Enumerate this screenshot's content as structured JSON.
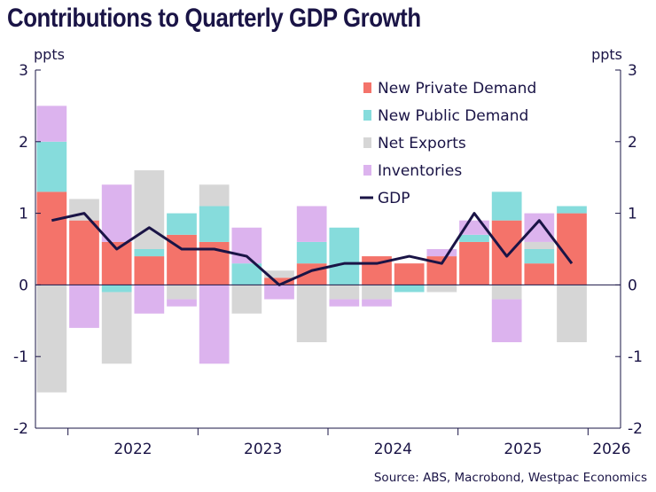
{
  "chart_data": {
    "type": "bar",
    "title": "Contributions to Quarterly GDP Growth",
    "ylabel_left": "ppts",
    "ylabel_right": "ppts",
    "ylim": [
      -2,
      3
    ],
    "yticks": [
      -2,
      -1,
      0,
      1,
      2,
      3
    ],
    "xticks": [
      "2022",
      "2023",
      "2024",
      "2025",
      "2026"
    ],
    "legend_position": "top-right",
    "grid": false,
    "x": [
      "2021 Q4",
      "2022 Q1",
      "2022 Q2",
      "2022 Q3",
      "2022 Q4",
      "2023 Q1",
      "2023 Q2",
      "2023 Q3",
      "2023 Q4",
      "2024 Q1",
      "2024 Q2",
      "2024 Q3",
      "2024 Q4",
      "2025 Q1",
      "2025 Q2",
      "2025 Q3",
      "2025 Q4",
      "2026 Q1"
    ],
    "series": [
      {
        "name": "New Private Demand",
        "type": "bar",
        "color": "#f4736a",
        "values": [
          1.3,
          0.9,
          0.6,
          0.4,
          0.7,
          0.6,
          0.0,
          0.1,
          0.3,
          0.0,
          0.4,
          0.3,
          0.4,
          0.6,
          0.9,
          0.3,
          1.0,
          null
        ]
      },
      {
        "name": "New Public Demand",
        "type": "bar",
        "color": "#86dcdc",
        "values": [
          0.7,
          0.0,
          -0.1,
          0.1,
          0.3,
          0.5,
          0.3,
          0.0,
          0.3,
          0.8,
          0.0,
          -0.1,
          0.0,
          0.1,
          0.4,
          0.2,
          0.1,
          null
        ]
      },
      {
        "name": "Net Exports",
        "type": "bar",
        "color": "#d6d6d6",
        "values": [
          -1.5,
          0.3,
          -1.0,
          1.1,
          -0.2,
          0.3,
          -0.4,
          0.1,
          -0.8,
          -0.2,
          -0.2,
          0.0,
          -0.1,
          0.0,
          -0.2,
          0.1,
          -0.8,
          null
        ]
      },
      {
        "name": "Inventories",
        "type": "bar",
        "color": "#dcb3ee",
        "values": [
          0.5,
          -0.6,
          0.8,
          -0.4,
          -0.1,
          -1.1,
          0.5,
          -0.2,
          0.5,
          -0.1,
          -0.1,
          0.0,
          0.1,
          0.2,
          -0.6,
          0.4,
          0.0,
          null
        ]
      },
      {
        "name": "GDP",
        "type": "line",
        "color": "#1a1446",
        "values": [
          0.9,
          1.0,
          0.5,
          0.8,
          0.5,
          0.5,
          0.4,
          0.0,
          0.2,
          0.3,
          0.3,
          0.4,
          0.3,
          1.0,
          0.4,
          0.9,
          0.3,
          null
        ]
      }
    ]
  },
  "source": "Source: ABS, Macrobond, Westpac Economics"
}
